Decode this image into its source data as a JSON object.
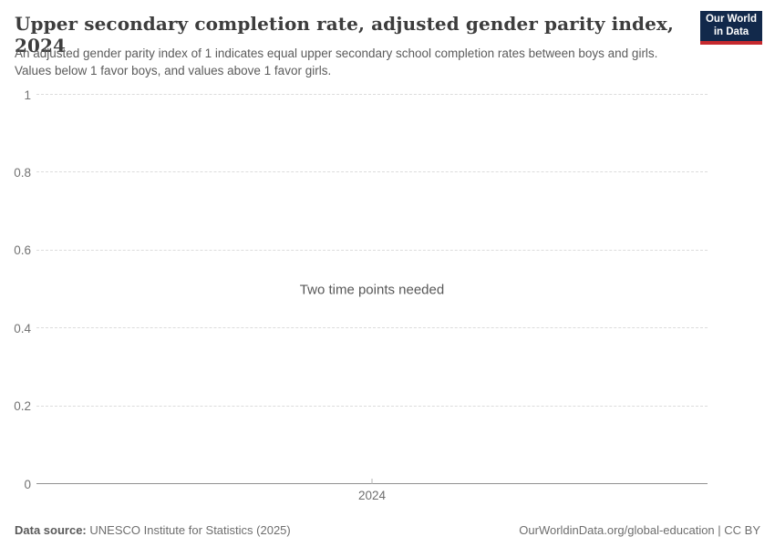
{
  "header": {
    "title": "Upper secondary completion rate, adjusted gender parity index, 2024",
    "subtitle": "An adjusted gender parity index of 1 indicates equal upper secondary school completion rates between boys and girls. Values below 1 favor boys, and values above 1 favor girls.",
    "logo": {
      "line1": "Our World",
      "line2": "in Data",
      "bg_color": "#12294b",
      "bar_color": "#c5292e"
    }
  },
  "chart_data": {
    "type": "line",
    "title": "Upper secondary completion rate, adjusted gender parity index, 2024",
    "series": [],
    "x": [],
    "empty_state_message": "Two time points needed",
    "xlabel": "",
    "ylabel": "",
    "ylim": [
      0,
      1
    ],
    "yticks": [
      0,
      0.2,
      0.4,
      0.6,
      0.8,
      1
    ],
    "ytick_labels": [
      "0",
      "0.2",
      "0.4",
      "0.6",
      "0.8",
      "1"
    ],
    "xtick_labels": [
      "2024"
    ],
    "grid": "horizontal-dashed",
    "legend": "none",
    "colors": {
      "gridline": "#dcdcdc",
      "axis_line": "#919191",
      "tick_label": "#737373",
      "message_text": "#575757"
    }
  },
  "footer": {
    "source_label": "Data source:",
    "source_text": "UNESCO Institute for Statistics (2025)",
    "attribution": "OurWorldinData.org/global-education | CC BY"
  }
}
